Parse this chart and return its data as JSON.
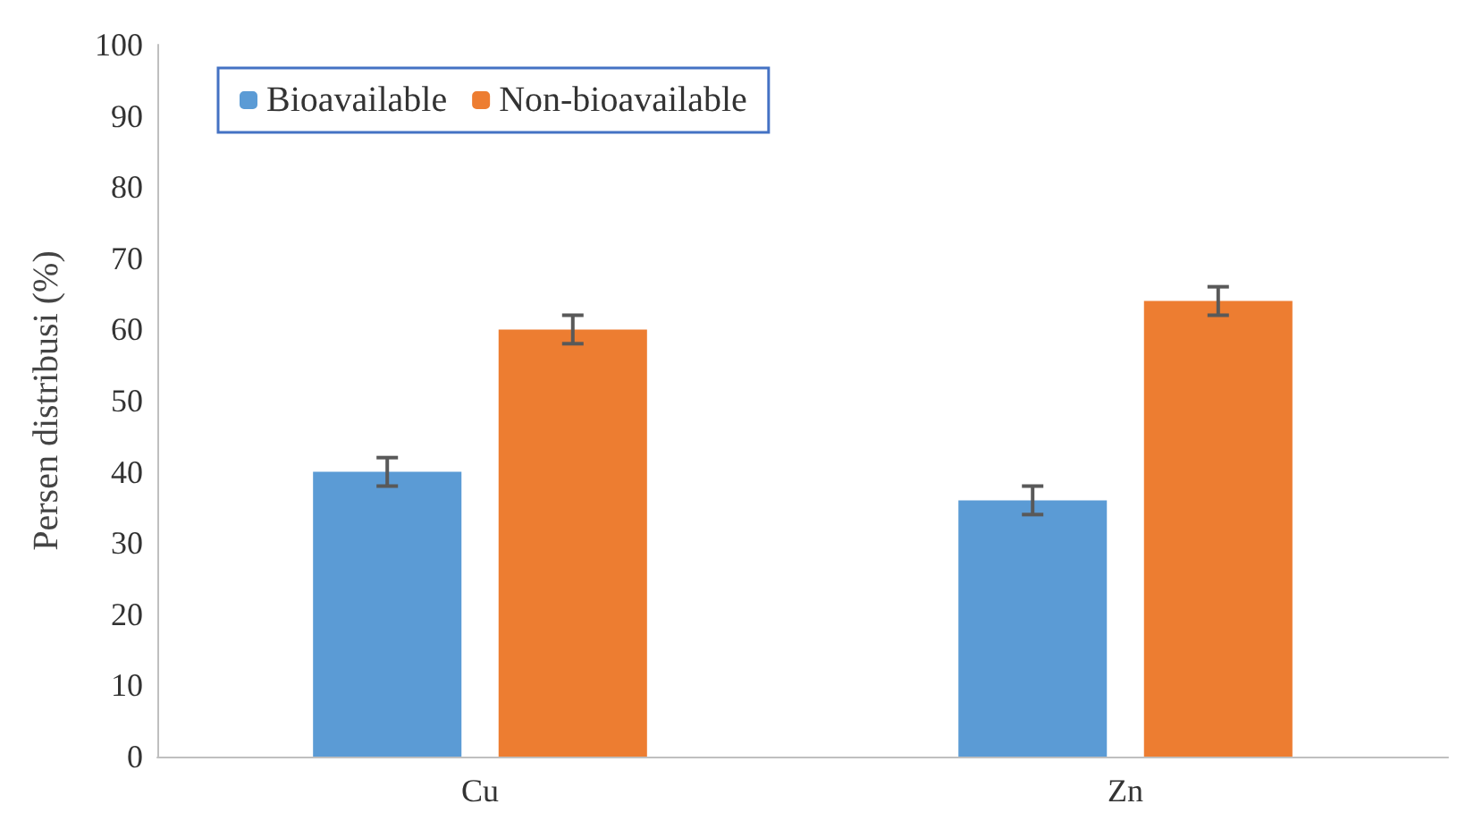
{
  "chart_data": {
    "type": "bar",
    "ylabel": "Persen distribusi (%)",
    "categories": [
      "Cu",
      "Zn"
    ],
    "series": [
      {
        "name": "Bioavailable",
        "color": "#5b9bd5",
        "values": [
          40,
          36
        ],
        "errors": [
          2,
          2
        ]
      },
      {
        "name": "Non-bioavailable",
        "color": "#ed7d31",
        "values": [
          60,
          64
        ],
        "errors": [
          2,
          2
        ]
      }
    ],
    "ylim": [
      0,
      100
    ],
    "yticks": [
      0,
      10,
      20,
      30,
      40,
      50,
      60,
      70,
      80,
      90,
      100
    ],
    "grid": false,
    "legend": "top left"
  }
}
